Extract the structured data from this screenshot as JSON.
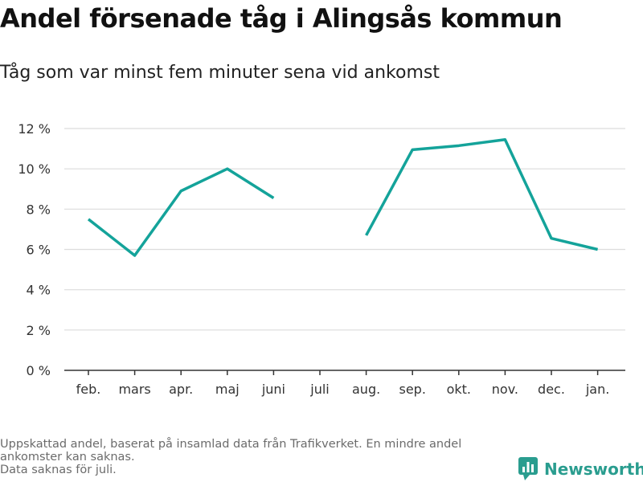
{
  "title": "Andel försenade tåg i Alingsås kommun",
  "subtitle": "Tåg som var minst fem minuter sena vid ankomst",
  "footnote": {
    "line1": "Uppskattad andel, baserat på insamlad data från Trafikverket. En mindre andel",
    "line2": "ankomster kan saknas.",
    "line3": "Data saknas för juli."
  },
  "brand": {
    "name": "Newsworthy",
    "icon": "newsworthy-logo-icon",
    "color": "#2a9d8f"
  },
  "chart_data": {
    "type": "line",
    "categories": [
      "feb.",
      "mars",
      "apr.",
      "maj",
      "juni",
      "juli",
      "aug.",
      "sep.",
      "okt.",
      "nov.",
      "dec.",
      "jan."
    ],
    "series": [
      {
        "values": [
          7.5,
          5.7,
          8.9,
          10.0,
          8.55,
          null,
          6.7,
          10.95,
          11.15,
          11.45,
          6.55,
          6.0
        ]
      }
    ],
    "ylim": [
      0,
      12
    ],
    "yticks": [
      0,
      2,
      4,
      6,
      8,
      10,
      12
    ],
    "ytick_labels": [
      "0 %",
      "2 %",
      "4 %",
      "6 %",
      "8 %",
      "10 %",
      "12 %"
    ],
    "grid": true,
    "line_color": "#14a39a",
    "grid_color": "#dcdcdc",
    "axis_color": "#333333"
  }
}
